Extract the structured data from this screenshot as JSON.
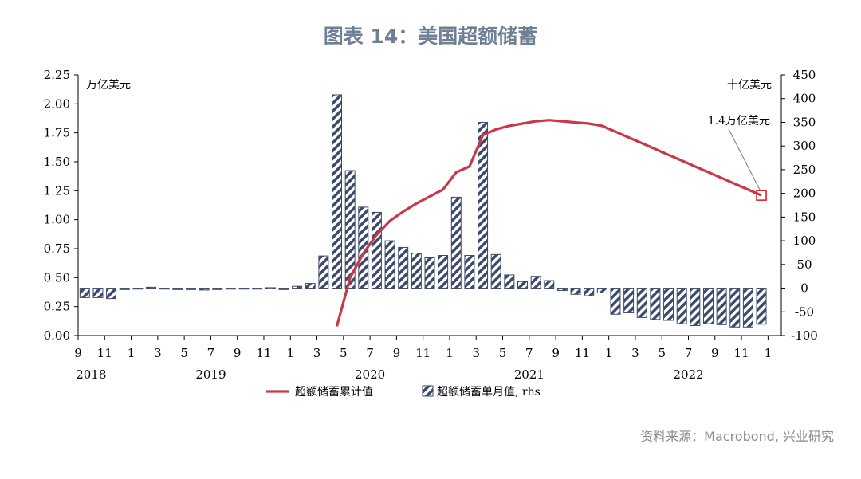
{
  "title": "图表 14：美国超额储蓄",
  "source": "资料来源：Macrobond, 兴业研究",
  "colors": {
    "title": "#6f7f94",
    "line": "#c8384a",
    "bar": "#3d4a6b",
    "marker": "#e0202a",
    "source": "#8c8c8c"
  },
  "chart_data": {
    "type": "bar+line",
    "left_axis": {
      "unit_label": "万亿美元",
      "range": [
        0,
        2.25
      ],
      "ticks": [
        "0.00",
        "0.25",
        "0.50",
        "0.75",
        "1.00",
        "1.25",
        "1.50",
        "1.75",
        "2.00",
        "2.25"
      ]
    },
    "right_axis": {
      "unit_label": "十亿美元",
      "range": [
        -100,
        450
      ],
      "ticks": [
        "-100",
        "-50",
        "0",
        "50",
        "100",
        "150",
        "200",
        "250",
        "300",
        "350",
        "400",
        "450"
      ]
    },
    "x_axis": {
      "month_labels": [
        "9",
        "11",
        "1",
        "3",
        "5",
        "7",
        "9",
        "11",
        "1",
        "3",
        "5",
        "7",
        "9",
        "11",
        "1",
        "3",
        "5",
        "7",
        "9",
        "11",
        "1",
        "3",
        "5",
        "7",
        "9",
        "11",
        "1"
      ],
      "year_labels": [
        "2018",
        "2019",
        "2020",
        "2021",
        "2022"
      ]
    },
    "months": [
      "2018-09",
      "2018-10",
      "2018-11",
      "2018-12",
      "2019-01",
      "2019-02",
      "2019-03",
      "2019-04",
      "2019-05",
      "2019-06",
      "2019-07",
      "2019-08",
      "2019-09",
      "2019-10",
      "2019-11",
      "2019-12",
      "2020-01",
      "2020-02",
      "2020-03",
      "2020-04",
      "2020-05",
      "2020-06",
      "2020-07",
      "2020-08",
      "2020-09",
      "2020-10",
      "2020-11",
      "2020-12",
      "2021-01",
      "2021-02",
      "2021-03",
      "2021-04",
      "2021-05",
      "2021-06",
      "2021-07",
      "2021-08",
      "2021-09",
      "2021-10",
      "2021-11",
      "2021-12",
      "2022-01",
      "2022-02",
      "2022-03",
      "2022-04",
      "2022-05",
      "2022-06",
      "2022-07",
      "2022-08",
      "2022-09",
      "2022-10",
      "2022-11",
      "2022-12"
    ],
    "series": [
      {
        "name": "超额储蓄单月值, rhs",
        "kind": "bar",
        "axis": "right",
        "values": [
          -20,
          -20,
          -22,
          -3,
          -2,
          2,
          -2,
          -3,
          -3,
          -4,
          -3,
          -2,
          -1,
          -1,
          1,
          -3,
          4,
          10,
          68,
          408,
          248,
          171,
          160,
          100,
          86,
          74,
          64,
          69,
          192,
          69,
          350,
          71,
          28,
          14,
          25,
          16,
          -5,
          -13,
          -16,
          -10,
          -55,
          -52,
          -62,
          -66,
          -68,
          -75,
          -79,
          -75,
          -77,
          -82,
          -82,
          -76
        ]
      },
      {
        "name": "超额储蓄累计值",
        "kind": "line",
        "axis": "left",
        "values": [
          null,
          null,
          null,
          null,
          null,
          null,
          null,
          null,
          null,
          null,
          null,
          null,
          null,
          null,
          null,
          null,
          null,
          null,
          null,
          0.08,
          0.5,
          0.71,
          0.87,
          0.99,
          1.07,
          1.14,
          1.2,
          1.26,
          1.41,
          1.46,
          1.73,
          1.78,
          1.81,
          1.83,
          1.85,
          1.86,
          1.85,
          1.84,
          1.83,
          1.81,
          1.76,
          1.71,
          1.66,
          1.61,
          1.56,
          1.51,
          1.46,
          1.41,
          1.36,
          1.31,
          1.26,
          1.21
        ]
      }
    ],
    "annotation": "1.4万亿美元",
    "legend": [
      "超额储蓄累计值",
      "超额储蓄单月值, rhs"
    ]
  }
}
